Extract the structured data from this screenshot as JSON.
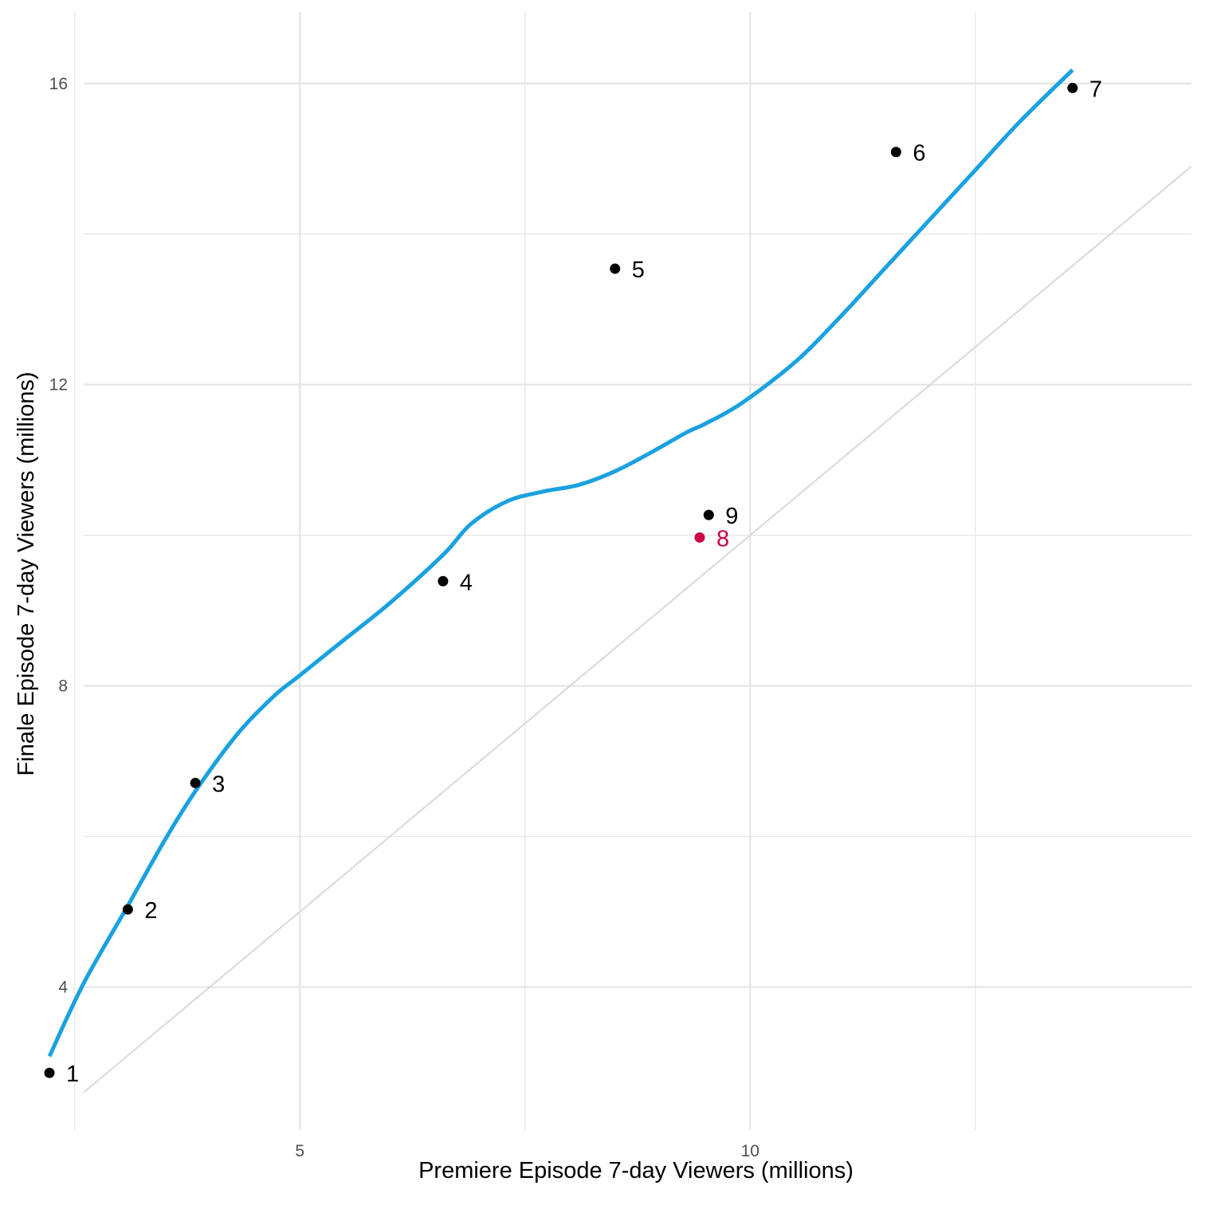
{
  "chart_data": {
    "type": "scatter",
    "title": "",
    "xlabel": "Premiere Episode 7-day Viewers (millions)",
    "ylabel": "Finale Episode 7-day Viewers (millions)",
    "xlim": [
      2.6,
      14.9
    ],
    "ylim": [
      2.1,
      16.95
    ],
    "x_ticks": [
      5,
      10
    ],
    "y_ticks": [
      4,
      8,
      12,
      16
    ],
    "x_minor_gridlines": [
      2.5,
      7.5,
      12.5
    ],
    "y_minor_gridlines": [
      6,
      10,
      14
    ],
    "grid": true,
    "legend": "none",
    "colors": {
      "point": "#000000",
      "highlight": "#cc0044",
      "smooth_line": "#1aa1e0",
      "reference_line": "#d9d9d9",
      "grid": "#e5e5e5"
    },
    "points": [
      {
        "label": "1",
        "x": 2.22,
        "y": 2.86,
        "highlight": false
      },
      {
        "label": "2",
        "x": 3.09,
        "y": 5.03,
        "highlight": false
      },
      {
        "label": "3",
        "x": 3.84,
        "y": 6.71,
        "highlight": false
      },
      {
        "label": "4",
        "x": 6.59,
        "y": 9.39,
        "highlight": false
      },
      {
        "label": "5",
        "x": 8.5,
        "y": 13.54,
        "highlight": false
      },
      {
        "label": "6",
        "x": 11.62,
        "y": 15.09,
        "highlight": false
      },
      {
        "label": "7",
        "x": 13.58,
        "y": 15.94,
        "highlight": false
      },
      {
        "label": "8",
        "x": 9.44,
        "y": 9.97,
        "highlight": true
      },
      {
        "label": "9",
        "x": 9.54,
        "y": 10.27,
        "highlight": false
      }
    ],
    "smooth_line": {
      "x": [
        2.22,
        2.6,
        3.09,
        3.5,
        3.84,
        4.3,
        4.7,
        5.0,
        5.5,
        6.0,
        6.59,
        6.9,
        7.3,
        7.7,
        8.1,
        8.5,
        8.9,
        9.3,
        9.5,
        9.9,
        10.5,
        11.0,
        11.5,
        12.0,
        12.5,
        13.0,
        13.58
      ],
      "y": [
        3.08,
        4.05,
        5.08,
        5.95,
        6.6,
        7.35,
        7.85,
        8.14,
        8.62,
        9.1,
        9.74,
        10.15,
        10.45,
        10.58,
        10.67,
        10.85,
        11.1,
        11.37,
        11.48,
        11.75,
        12.3,
        12.9,
        13.55,
        14.2,
        14.85,
        15.5,
        16.18
      ]
    },
    "reference_line": {
      "type": "identity",
      "x_range": [
        2.6,
        14.9
      ]
    }
  }
}
